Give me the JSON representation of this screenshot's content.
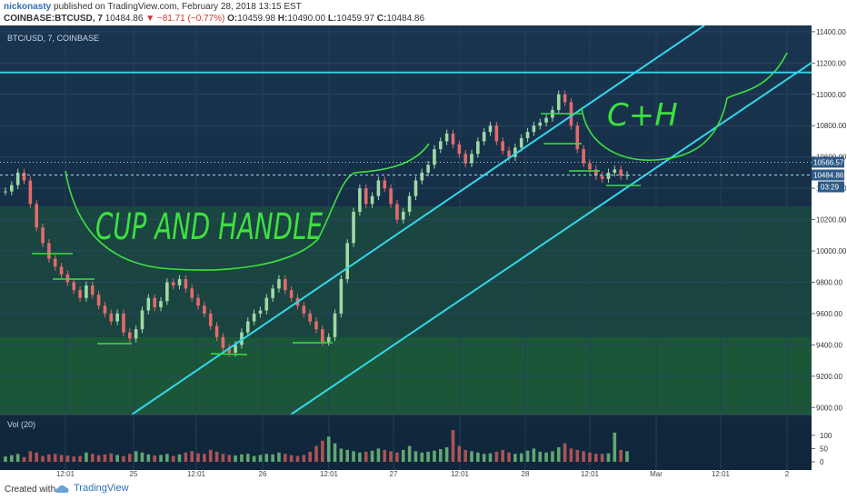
{
  "header": {
    "author": "nickonasty",
    "published": "published on TradingView.com, February 28, 2018 13:15 EST",
    "symbol": "COINBASE:BTCUSD, 7",
    "last": "10484.86",
    "change": "−81.71 (−0.77%)",
    "o_label": "O:",
    "o_value": "10459.98",
    "h_label": "H:",
    "h_value": "10490.00",
    "l_label": "L:",
    "l_value": "10459.97",
    "c_label": "C:",
    "c_value": "10484.86"
  },
  "chart_data": {
    "type": "line",
    "legend": "BTC/USD, 7, COINBASE",
    "x_ticks": [
      "12:01",
      "25",
      "12:01",
      "26",
      "12:01",
      "27",
      "12:01",
      "28",
      "12:01",
      "Mar",
      "12:01",
      "2"
    ],
    "y_ticks": [
      9000,
      9200,
      9400,
      9600,
      9800,
      10000,
      10200,
      10400,
      10600,
      10800,
      11000,
      11200,
      11400
    ],
    "ylim": [
      8990,
      11440
    ],
    "price_badges": [
      "10566.57",
      "10484.86",
      "03:29"
    ],
    "series": [
      {
        "values": [
          10380,
          10420,
          10500,
          10450,
          10300,
          10150,
          10050,
          9950,
          9900,
          9850,
          9800,
          9750,
          9700,
          9780,
          9720,
          9650,
          9600,
          9550,
          9600,
          9480,
          9440,
          9500,
          9620,
          9700,
          9640,
          9680,
          9800,
          9780,
          9820,
          9760,
          9700,
          9650,
          9600,
          9520,
          9450,
          9380,
          9350,
          9400,
          9480,
          9550,
          9600,
          9620,
          9700,
          9760,
          9820,
          9750,
          9700,
          9650,
          9600,
          9550,
          9500,
          9420,
          9450,
          9600,
          9820,
          10050,
          10250,
          10400,
          10300,
          10350,
          10450,
          10400,
          10300,
          10200,
          10250,
          10350,
          10450,
          10500,
          10550,
          10650,
          10700,
          10750,
          10680,
          10620,
          10560,
          10620,
          10700,
          10760,
          10800,
          10700,
          10640,
          10600,
          10660,
          10720,
          10760,
          10800,
          10820,
          10850,
          10900,
          11000,
          10950,
          10800,
          10650,
          10560,
          10520,
          10480,
          10460,
          10500,
          10520,
          10480,
          10485
        ]
      }
    ],
    "volume": {
      "label": "Vol (20)",
      "y_ticks": [
        0,
        50,
        100
      ],
      "values": [
        20,
        25,
        30,
        18,
        40,
        35,
        22,
        28,
        30,
        26,
        24,
        20,
        22,
        35,
        30,
        25,
        28,
        32,
        26,
        22,
        30,
        40,
        35,
        28,
        24,
        26,
        30,
        22,
        28,
        35,
        40,
        32,
        30,
        45,
        38,
        30,
        26,
        24,
        28,
        30,
        22,
        26,
        30,
        28,
        35,
        30,
        25,
        22,
        26,
        38,
        60,
        80,
        95,
        70,
        50,
        45,
        40,
        35,
        38,
        42,
        50,
        45,
        40,
        35,
        45,
        60,
        40,
        35,
        38,
        42,
        48,
        55,
        120,
        60,
        45,
        40,
        35,
        30,
        32,
        38,
        45,
        35,
        30,
        32,
        42,
        50,
        38,
        35,
        40,
        55,
        70,
        50,
        45,
        40,
        35,
        30,
        30,
        32,
        110,
        45,
        40
      ]
    },
    "annotations": [
      "CUP AND HANDLE",
      "C+H"
    ]
  },
  "footer": {
    "created": "Created with",
    "brand": "TradingView"
  }
}
